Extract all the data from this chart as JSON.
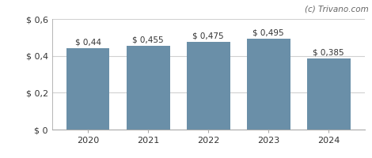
{
  "categories": [
    "2020",
    "2021",
    "2022",
    "2023",
    "2024"
  ],
  "values": [
    0.44,
    0.455,
    0.475,
    0.495,
    0.385
  ],
  "labels": [
    "$ 0,44",
    "$ 0,455",
    "$ 0,475",
    "$ 0,495",
    "$ 0,385"
  ],
  "bar_color": "#6a8fa8",
  "ylim": [
    0,
    0.6
  ],
  "yticks": [
    0.0,
    0.2,
    0.4,
    0.6
  ],
  "ytick_labels": [
    "$ 0",
    "$ 0,2",
    "$ 0,4",
    "$ 0,6"
  ],
  "watermark": "(c) Trivano.com",
  "background_color": "#ffffff",
  "grid_color": "#d0d0d0",
  "label_fontsize": 7.5,
  "tick_fontsize": 8,
  "watermark_fontsize": 7.5
}
